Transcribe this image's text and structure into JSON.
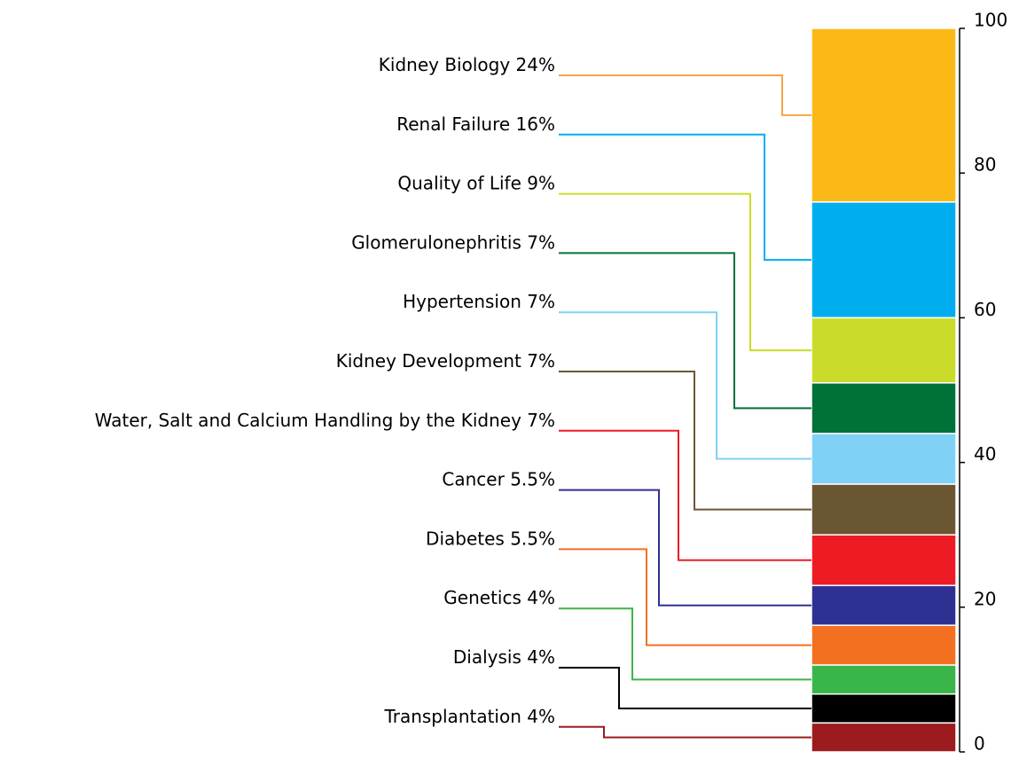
{
  "chart_data": {
    "type": "stacked-bar",
    "categories": [
      "Kidney Biology",
      "Renal Failure",
      "Quality of Life",
      "Glomerulonephritis",
      "Hypertension",
      "Kidney Development",
      "Water, Salt and Calcium Handling by the Kidney",
      "Cancer",
      "Diabetes",
      "Genetics",
      "Dialysis",
      "Transplantation"
    ],
    "values": [
      24,
      16,
      9,
      7,
      7,
      7,
      7,
      5.5,
      5.5,
      4,
      4,
      4
    ],
    "value_labels": [
      "24%",
      "16%",
      "9%",
      "7%",
      "7%",
      "7%",
      "7%",
      "5.5%",
      "5.5%",
      "4%",
      "4%",
      "4%"
    ],
    "colors": [
      "#fbb817",
      "#00aeef",
      "#cbdb2a",
      "#007139",
      "#7fd1f5",
      "#6b5634",
      "#ed1c24",
      "#2e3192",
      "#f37021",
      "#3ab54a",
      "#000000",
      "#9b1b1e"
    ],
    "ylim": [
      0,
      100
    ],
    "yticks": [
      0,
      20,
      40,
      60,
      80,
      100
    ]
  }
}
